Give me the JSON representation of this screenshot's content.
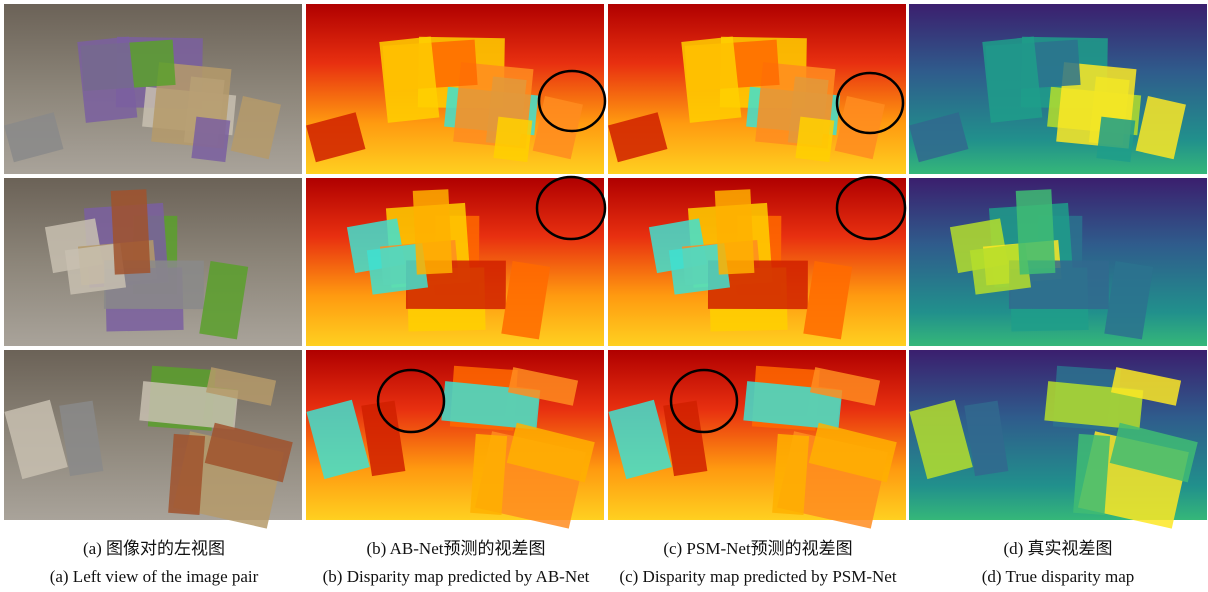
{
  "figure": {
    "captions": [
      {
        "zh": "(a) 图像对的左视图",
        "en": "(a) Left view of the image pair"
      },
      {
        "zh": "(b) AB-Net预测的视差图",
        "en": "(b) Disparity map predicted by AB-Net"
      },
      {
        "zh": "(c) PSM-Net预测的视差图",
        "en": "(c) Disparity map predicted by PSM-Net"
      },
      {
        "zh": "(d) 真实视差图",
        "en": "(d) True disparity map"
      }
    ]
  }
}
